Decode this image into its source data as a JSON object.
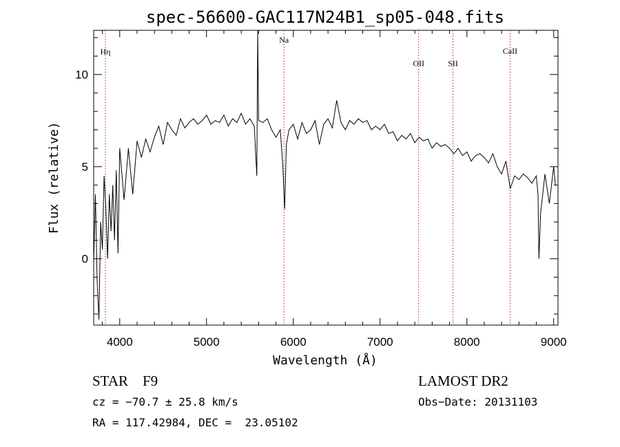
{
  "chart_data": {
    "type": "line",
    "title": "spec-56600-GAC117N24B1_sp05-048.fits",
    "xlabel": "Wavelength (Å)",
    "ylabel": "Flux (relative)",
    "xlim": [
      3700,
      9050
    ],
    "ylim": [
      -3.6,
      12.4
    ],
    "xticks": [
      4000,
      5000,
      6000,
      7000,
      8000,
      9000
    ],
    "yticks": [
      0,
      5,
      10
    ],
    "grid": false,
    "series": [
      {
        "x": [
          3700,
          3720,
          3740,
          3760,
          3780,
          3800,
          3820,
          3840,
          3860,
          3880,
          3900,
          3920,
          3940,
          3960,
          3980,
          4000,
          4050,
          4100,
          4150,
          4200,
          4250,
          4300,
          4350,
          4400,
          4450,
          4500,
          4550,
          4600,
          4650,
          4700,
          4750,
          4800,
          4850,
          4900,
          4950,
          5000,
          5050,
          5100,
          5150,
          5200,
          5250,
          5300,
          5350,
          5400,
          5450,
          5500,
          5550,
          5580,
          5590,
          5600,
          5650,
          5700,
          5750,
          5800,
          5850,
          5880,
          5900,
          5920,
          5950,
          6000,
          6050,
          6100,
          6150,
          6200,
          6250,
          6300,
          6350,
          6400,
          6450,
          6500,
          6550,
          6600,
          6650,
          6700,
          6750,
          6800,
          6850,
          6900,
          6950,
          7000,
          7050,
          7100,
          7150,
          7200,
          7250,
          7300,
          7350,
          7400,
          7450,
          7500,
          7550,
          7600,
          7650,
          7700,
          7750,
          7800,
          7850,
          7900,
          7950,
          8000,
          8050,
          8100,
          8150,
          8200,
          8250,
          8300,
          8350,
          8400,
          8450,
          8500,
          8550,
          8600,
          8650,
          8700,
          8750,
          8800,
          8820,
          8830,
          8850,
          8900,
          8950,
          9000,
          9020
        ],
        "y": [
          -0.2,
          3.5,
          -1.2,
          -3.3,
          2.0,
          0.5,
          4.5,
          2.8,
          0.0,
          3.5,
          1.5,
          4.0,
          1.0,
          4.8,
          0.3,
          6.0,
          3.2,
          6.0,
          3.5,
          6.4,
          5.5,
          6.5,
          5.8,
          6.6,
          7.2,
          6.2,
          7.4,
          7.0,
          6.7,
          7.6,
          7.1,
          7.4,
          7.6,
          7.3,
          7.5,
          7.8,
          7.3,
          7.5,
          7.4,
          7.8,
          7.2,
          7.6,
          7.4,
          7.9,
          7.3,
          7.6,
          7.2,
          4.5,
          12.4,
          7.5,
          7.4,
          7.6,
          7.0,
          6.6,
          7.0,
          5.0,
          2.7,
          6.2,
          7.0,
          7.3,
          6.5,
          7.4,
          6.8,
          7.0,
          7.5,
          6.2,
          7.3,
          7.6,
          7.1,
          8.6,
          7.4,
          7.0,
          7.5,
          7.3,
          7.6,
          7.4,
          7.5,
          7.0,
          7.2,
          7.0,
          7.3,
          6.8,
          6.9,
          6.4,
          6.7,
          6.5,
          6.8,
          6.3,
          6.6,
          6.4,
          6.5,
          6.0,
          6.3,
          6.1,
          6.2,
          6.0,
          5.7,
          6.0,
          5.6,
          5.8,
          5.3,
          5.6,
          5.7,
          5.5,
          5.2,
          5.7,
          5.0,
          4.6,
          5.3,
          3.8,
          4.5,
          4.3,
          4.6,
          4.4,
          4.1,
          4.5,
          3.5,
          0.0,
          2.5,
          4.6,
          3.0,
          5.0,
          4.0
        ]
      }
    ],
    "annotations": [
      {
        "label": "Hη",
        "x": 3835
      },
      {
        "label": "Na",
        "x": 5893
      },
      {
        "label": "OII",
        "x": 7444
      },
      {
        "label": "SII",
        "x": 7840
      },
      {
        "label": "CaII",
        "x": 8498
      }
    ]
  },
  "footer": {
    "object": "STAR    F9",
    "survey": "LAMOST DR2",
    "cz": "cz = −70.7 ± 25.8 km/s",
    "obs_date": "Obs−Date: 20131103",
    "coords": "RA = 117.42984, DEC =  23.05102"
  }
}
